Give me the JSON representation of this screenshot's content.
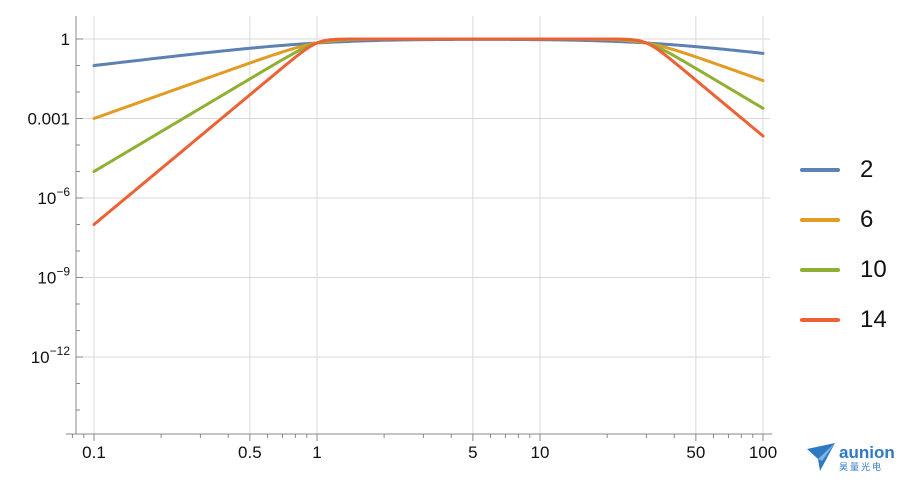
{
  "chart_data": {
    "type": "line",
    "x_scale": "log",
    "y_scale": "log",
    "xlim": [
      0.08,
      110
    ],
    "ylim": [
      1e-16,
      10
    ],
    "x_ticks": [
      {
        "value": 0.1,
        "label": "0.1"
      },
      {
        "value": 0.5,
        "label": "0.5"
      },
      {
        "value": 1,
        "label": "1"
      },
      {
        "value": 5,
        "label": "5"
      },
      {
        "value": 10,
        "label": "10"
      },
      {
        "value": 50,
        "label": "50"
      },
      {
        "value": 100,
        "label": "100"
      }
    ],
    "y_ticks": [
      {
        "value": 1,
        "base": "1",
        "exp": ""
      },
      {
        "value": 0.001,
        "base": "0.001",
        "exp": ""
      },
      {
        "value": 1e-06,
        "base": "10",
        "exp": "−6"
      },
      {
        "value": 1e-09,
        "base": "10",
        "exp": "−9"
      },
      {
        "value": 1e-12,
        "base": "10",
        "exp": "−12"
      }
    ],
    "grid": true,
    "legend_position": "right",
    "band": {
      "low": 1,
      "high": 30
    },
    "series": [
      {
        "name": "2",
        "order": 2,
        "color": "#5e81b5"
      },
      {
        "name": "6",
        "order": 6,
        "color": "#e19c24"
      },
      {
        "name": "10",
        "order": 10,
        "color": "#8fb032"
      },
      {
        "name": "14",
        "order": 14,
        "color": "#eb6235"
      }
    ]
  },
  "logo": {
    "word": "aunion",
    "cn": "昊量光电",
    "color": "#2f78c4"
  }
}
